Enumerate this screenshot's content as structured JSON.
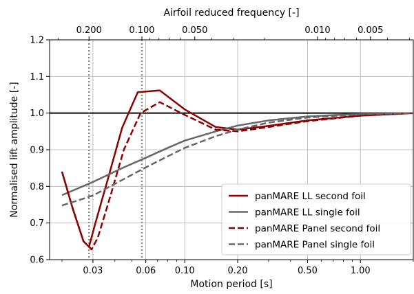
{
  "chart_data": {
    "type": "line",
    "xlabel": "Motion period [s]",
    "ylabel": "Normalised lift amplitude [-]",
    "top_xlabel": "Airfoil reduced frequency [-]",
    "xscale": "log",
    "xlim": [
      0.017,
      2.0
    ],
    "ylim": [
      0.6,
      1.2
    ],
    "grid": true,
    "legend_position": "lower-right",
    "x_ticks": [
      {
        "value": 0.03,
        "label": "0.03"
      },
      {
        "value": 0.06,
        "label": "0.06"
      },
      {
        "value": 0.1,
        "label": "0.10"
      },
      {
        "value": 0.2,
        "label": "0.20"
      },
      {
        "value": 0.5,
        "label": "0.50"
      },
      {
        "value": 1.0,
        "label": "1.00"
      }
    ],
    "y_ticks": [
      {
        "value": 0.6,
        "label": "0.6"
      },
      {
        "value": 0.7,
        "label": "0.7"
      },
      {
        "value": 0.8,
        "label": "0.8"
      },
      {
        "value": 0.9,
        "label": "0.9"
      },
      {
        "value": 1.0,
        "label": "1.0"
      },
      {
        "value": 1.1,
        "label": "1.1"
      },
      {
        "value": 1.2,
        "label": "1.2"
      }
    ],
    "top_ticks": [
      {
        "period": 0.0285,
        "label": "0.200"
      },
      {
        "period": 0.057,
        "label": "0.100"
      },
      {
        "period": 0.114,
        "label": "0.050"
      },
      {
        "period": 0.57,
        "label": "0.010"
      },
      {
        "period": 1.14,
        "label": "0.005"
      }
    ],
    "reference_line": {
      "y": 1.0,
      "color": "#000000"
    },
    "vertical_markers": [
      0.0285,
      0.057
    ],
    "series": [
      {
        "name": "panMARE LL second foil",
        "color": "#8b0000",
        "dash": "solid",
        "x": [
          0.02,
          0.023,
          0.0265,
          0.0285,
          0.031,
          0.036,
          0.044,
          0.054,
          0.072,
          0.1,
          0.15,
          0.2,
          0.3,
          0.5,
          1.0,
          2.0
        ],
        "y": [
          0.84,
          0.74,
          0.65,
          0.635,
          0.7,
          0.81,
          0.96,
          1.057,
          1.062,
          1.01,
          0.962,
          0.955,
          0.965,
          0.98,
          0.993,
          1.0
        ]
      },
      {
        "name": "panMARE LL single foil",
        "color": "#666666",
        "dash": "solid",
        "x": [
          0.02,
          0.03,
          0.045,
          0.06,
          0.08,
          0.1,
          0.15,
          0.2,
          0.3,
          0.5,
          1.0,
          2.0
        ],
        "y": [
          0.776,
          0.812,
          0.852,
          0.878,
          0.905,
          0.925,
          0.95,
          0.966,
          0.98,
          0.991,
          0.998,
          1.0
        ]
      },
      {
        "name": "panMARE Panel second foil",
        "color": "#8b0000",
        "dash": "dashed",
        "x": [
          0.02,
          0.023,
          0.0265,
          0.0295,
          0.032,
          0.037,
          0.045,
          0.056,
          0.072,
          0.1,
          0.15,
          0.2,
          0.3,
          0.5,
          1.0,
          2.0
        ],
        "y": [
          0.84,
          0.74,
          0.65,
          0.628,
          0.66,
          0.76,
          0.9,
          1.0,
          1.03,
          0.995,
          0.955,
          0.95,
          0.962,
          0.978,
          0.993,
          1.0
        ]
      },
      {
        "name": "panMARE Panel single foil",
        "color": "#666666",
        "dash": "dashed",
        "x": [
          0.02,
          0.03,
          0.045,
          0.06,
          0.08,
          0.1,
          0.15,
          0.2,
          0.3,
          0.5,
          1.0,
          2.0
        ],
        "y": [
          0.748,
          0.775,
          0.82,
          0.852,
          0.882,
          0.905,
          0.937,
          0.955,
          0.974,
          0.988,
          0.997,
          1.0
        ]
      }
    ]
  }
}
